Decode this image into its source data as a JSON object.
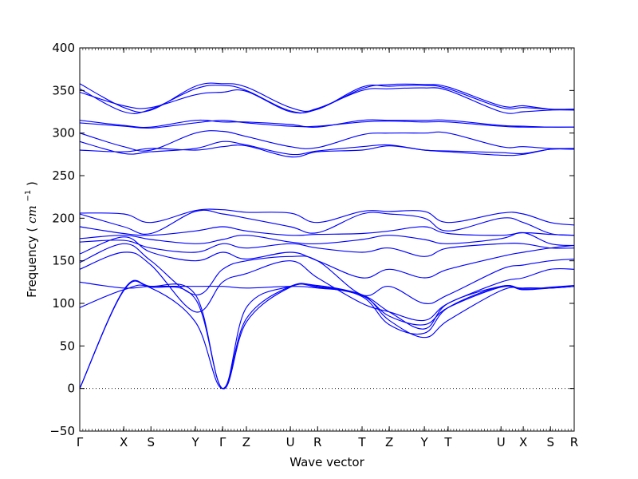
{
  "chart_data": {
    "type": "line",
    "title": "",
    "xlabel": "Wave vector",
    "ylabel": "Frequency ($cm^{-1}$)",
    "ylabel_text": "Frequency (",
    "ylabel_unit_base": "cm",
    "ylabel_unit_exp": "−1",
    "ylabel_close": ")",
    "ylim": [
      -50,
      400
    ],
    "yticks": [
      -50,
      0,
      50,
      100,
      150,
      200,
      250,
      300,
      350,
      400
    ],
    "ytick_labels": [
      "−50",
      "0",
      "50",
      "100",
      "150",
      "200",
      "250",
      "300",
      "350",
      "400"
    ],
    "xlim": [
      0,
      1
    ],
    "xticks": [
      {
        "label": "Γ",
        "pos": 0.0
      },
      {
        "label": "X",
        "pos": 0.089
      },
      {
        "label": "S",
        "pos": 0.144
      },
      {
        "label": "Y",
        "pos": 0.234
      },
      {
        "label": "Γ",
        "pos": 0.289
      },
      {
        "label": "Z",
        "pos": 0.337
      },
      {
        "label": "U",
        "pos": 0.426
      },
      {
        "label": "R",
        "pos": 0.481
      },
      {
        "label": "T",
        "pos": 0.571
      },
      {
        "label": "Z",
        "pos": 0.626
      },
      {
        "label": "Y",
        "pos": 0.697
      },
      {
        "label": "T",
        "pos": 0.745
      },
      {
        "label": "U",
        "pos": 0.852
      },
      {
        "label": "X",
        "pos": 0.897
      },
      {
        "label": "S",
        "pos": 0.952
      },
      {
        "label": "R",
        "pos": 1.0
      }
    ],
    "zero_line": {
      "y": 0,
      "style": "dotted"
    },
    "grid": false,
    "legend": "none",
    "line_color": "#0000ff",
    "series": [
      {
        "x": [
          0,
          0.089,
          0.144,
          0.234,
          0.289,
          0.337,
          0.426,
          0.481,
          0.571,
          0.626,
          0.697,
          0.745,
          0.852,
          0.897,
          0.952,
          1
        ],
        "y": [
          358,
          330,
          327,
          355,
          358,
          354,
          330,
          328,
          354,
          355,
          356,
          352,
          330,
          330,
          328,
          328
        ]
      },
      {
        "x": [
          0,
          0.089,
          0.144,
          0.234,
          0.289,
          0.337,
          0.426,
          0.481,
          0.571,
          0.626,
          0.697,
          0.745,
          0.852,
          0.897,
          0.952,
          1
        ],
        "y": [
          352,
          325,
          328,
          352,
          356,
          350,
          326,
          328,
          352,
          357,
          357,
          354,
          332,
          332,
          328,
          328
        ]
      },
      {
        "x": [
          0,
          0.089,
          0.144,
          0.234,
          0.289,
          0.337,
          0.426,
          0.481,
          0.571,
          0.626,
          0.697,
          0.745,
          0.852,
          0.897,
          0.952,
          1
        ],
        "y": [
          348,
          332,
          330,
          345,
          348,
          349,
          325,
          329,
          350,
          352,
          353,
          350,
          325,
          325,
          327,
          327
        ]
      },
      {
        "x": [
          0,
          0.089,
          0.144,
          0.234,
          0.289,
          0.337,
          0.426,
          0.481,
          0.571,
          0.626,
          0.697,
          0.745,
          0.852,
          0.897,
          0.952,
          1
        ],
        "y": [
          315,
          309,
          307,
          315,
          313,
          313,
          310,
          307,
          315,
          315,
          315,
          315,
          309,
          308,
          307,
          307
        ]
      },
      {
        "x": [
          0,
          0.089,
          0.144,
          0.234,
          0.289,
          0.337,
          0.426,
          0.481,
          0.571,
          0.626,
          0.697,
          0.745,
          0.852,
          0.897,
          0.952,
          1
        ],
        "y": [
          312,
          308,
          306,
          312,
          315,
          312,
          308,
          308,
          313,
          314,
          313,
          313,
          308,
          307,
          307,
          307
        ]
      },
      {
        "x": [
          0,
          0.089,
          0.144,
          0.234,
          0.289,
          0.337,
          0.426,
          0.481,
          0.571,
          0.626,
          0.697,
          0.745,
          0.852,
          0.897,
          0.952,
          1
        ],
        "y": [
          300,
          284,
          280,
          300,
          302,
          296,
          284,
          283,
          298,
          300,
          300,
          300,
          284,
          284,
          282,
          282
        ]
      },
      {
        "x": [
          0,
          0.089,
          0.144,
          0.234,
          0.289,
          0.337,
          0.426,
          0.481,
          0.571,
          0.626,
          0.697,
          0.745,
          0.852,
          0.897,
          0.952,
          1
        ],
        "y": [
          290,
          276,
          278,
          282,
          290,
          286,
          275,
          279,
          284,
          286,
          280,
          279,
          277,
          276,
          281,
          281
        ]
      },
      {
        "x": [
          0,
          0.089,
          0.144,
          0.234,
          0.289,
          0.337,
          0.426,
          0.481,
          0.571,
          0.626,
          0.697,
          0.745,
          0.852,
          0.897,
          0.952,
          1
        ],
        "y": [
          280,
          278,
          282,
          280,
          284,
          285,
          272,
          278,
          280,
          285,
          280,
          278,
          274,
          275,
          281,
          281
        ]
      },
      {
        "x": [
          0,
          0.089,
          0.144,
          0.234,
          0.289,
          0.337,
          0.426,
          0.481,
          0.571,
          0.626,
          0.697,
          0.745,
          0.852,
          0.897,
          0.952,
          1
        ],
        "y": [
          206,
          205,
          195,
          209,
          210,
          207,
          206,
          195,
          208,
          208,
          208,
          195,
          206,
          205,
          195,
          192
        ]
      },
      {
        "x": [
          0,
          0.089,
          0.144,
          0.234,
          0.289,
          0.337,
          0.426,
          0.481,
          0.571,
          0.626,
          0.697,
          0.745,
          0.852,
          0.897,
          0.952,
          1
        ],
        "y": [
          205,
          190,
          182,
          208,
          205,
          200,
          190,
          183,
          205,
          205,
          200,
          185,
          200,
          195,
          182,
          180
        ]
      },
      {
        "x": [
          0,
          0.089,
          0.144,
          0.234,
          0.289,
          0.337,
          0.426,
          0.481,
          0.571,
          0.626,
          0.697,
          0.745,
          0.852,
          0.897,
          0.952,
          1
        ],
        "y": [
          190,
          182,
          180,
          185,
          190,
          185,
          180,
          181,
          182,
          185,
          190,
          182,
          180,
          183,
          181,
          180
        ]
      },
      {
        "x": [
          0,
          0.089,
          0.144,
          0.234,
          0.289,
          0.337,
          0.426,
          0.481,
          0.571,
          0.626,
          0.697,
          0.745,
          0.852,
          0.897,
          0.952,
          1
        ],
        "y": [
          176,
          180,
          175,
          170,
          175,
          180,
          172,
          170,
          175,
          180,
          175,
          170,
          176,
          183,
          170,
          168
        ]
      },
      {
        "x": [
          0,
          0.089,
          0.144,
          0.234,
          0.289,
          0.337,
          0.426,
          0.481,
          0.571,
          0.626,
          0.697,
          0.745,
          0.852,
          0.897,
          0.952,
          1
        ],
        "y": [
          172,
          174,
          165,
          160,
          170,
          165,
          170,
          165,
          160,
          165,
          155,
          165,
          170,
          170,
          165,
          165
        ]
      },
      {
        "x": [
          0,
          0.089,
          0.144,
          0.234,
          0.289,
          0.337,
          0.426,
          0.481,
          0.571,
          0.626,
          0.697,
          0.745,
          0.852,
          0.897,
          0.952,
          1
        ],
        "y": [
          158,
          178,
          160,
          150,
          160,
          152,
          160,
          150,
          130,
          140,
          130,
          140,
          155,
          160,
          165,
          168
        ]
      },
      {
        "x": [
          0,
          0.089,
          0.144,
          0.234,
          0.289,
          0.337,
          0.426,
          0.481,
          0.571,
          0.626,
          0.697,
          0.745,
          0.852,
          0.897,
          0.952,
          1
        ],
        "y": [
          148,
          170,
          150,
          110,
          140,
          150,
          155,
          150,
          110,
          120,
          100,
          110,
          140,
          145,
          150,
          152
        ]
      },
      {
        "x": [
          0,
          0.089,
          0.144,
          0.234,
          0.289,
          0.337,
          0.426,
          0.481,
          0.571,
          0.626,
          0.697,
          0.745,
          0.852,
          0.897,
          0.952,
          1
        ],
        "y": [
          140,
          160,
          145,
          90,
          125,
          135,
          150,
          130,
          100,
          90,
          80,
          100,
          125,
          130,
          140,
          140
        ]
      },
      {
        "x": [
          0,
          0.089,
          0.144,
          0.234,
          0.289,
          0.337,
          0.426,
          0.481,
          0.571,
          0.626,
          0.697,
          0.745,
          0.852,
          0.897,
          0.952,
          1
        ],
        "y": [
          125,
          118,
          120,
          120,
          120,
          118,
          120,
          118,
          110,
          80,
          60,
          80,
          115,
          118,
          118,
          120
        ]
      },
      {
        "x": [
          0,
          0.089,
          0.144,
          0.234,
          0.289,
          0.337,
          0.426,
          0.481,
          0.571,
          0.626,
          0.697,
          0.745,
          0.852,
          0.897,
          0.952,
          1
        ],
        "y": [
          95,
          116,
          118,
          78,
          0,
          82,
          120,
          120,
          108,
          75,
          65,
          95,
          120,
          116,
          118,
          120
        ]
      },
      {
        "x": [
          0,
          0.089,
          0.144,
          0.234,
          0.289,
          0.337,
          0.426,
          0.481,
          0.571,
          0.626,
          0.697,
          0.745,
          0.852,
          0.897,
          0.952,
          1
        ],
        "y": [
          0,
          116,
          120,
          110,
          0,
          95,
          120,
          121,
          110,
          90,
          70,
          100,
          120,
          117,
          118,
          120
        ]
      },
      {
        "x": [
          0,
          0.089,
          0.144,
          0.234,
          0.289,
          0.337,
          0.426,
          0.481,
          0.571,
          0.626,
          0.697,
          0.745,
          0.852,
          0.897,
          0.952,
          1
        ],
        "y": [
          0,
          115,
          119,
          105,
          0,
          78,
          119,
          119,
          109,
          85,
          75,
          95,
          119,
          116,
          119,
          121
        ]
      }
    ]
  }
}
